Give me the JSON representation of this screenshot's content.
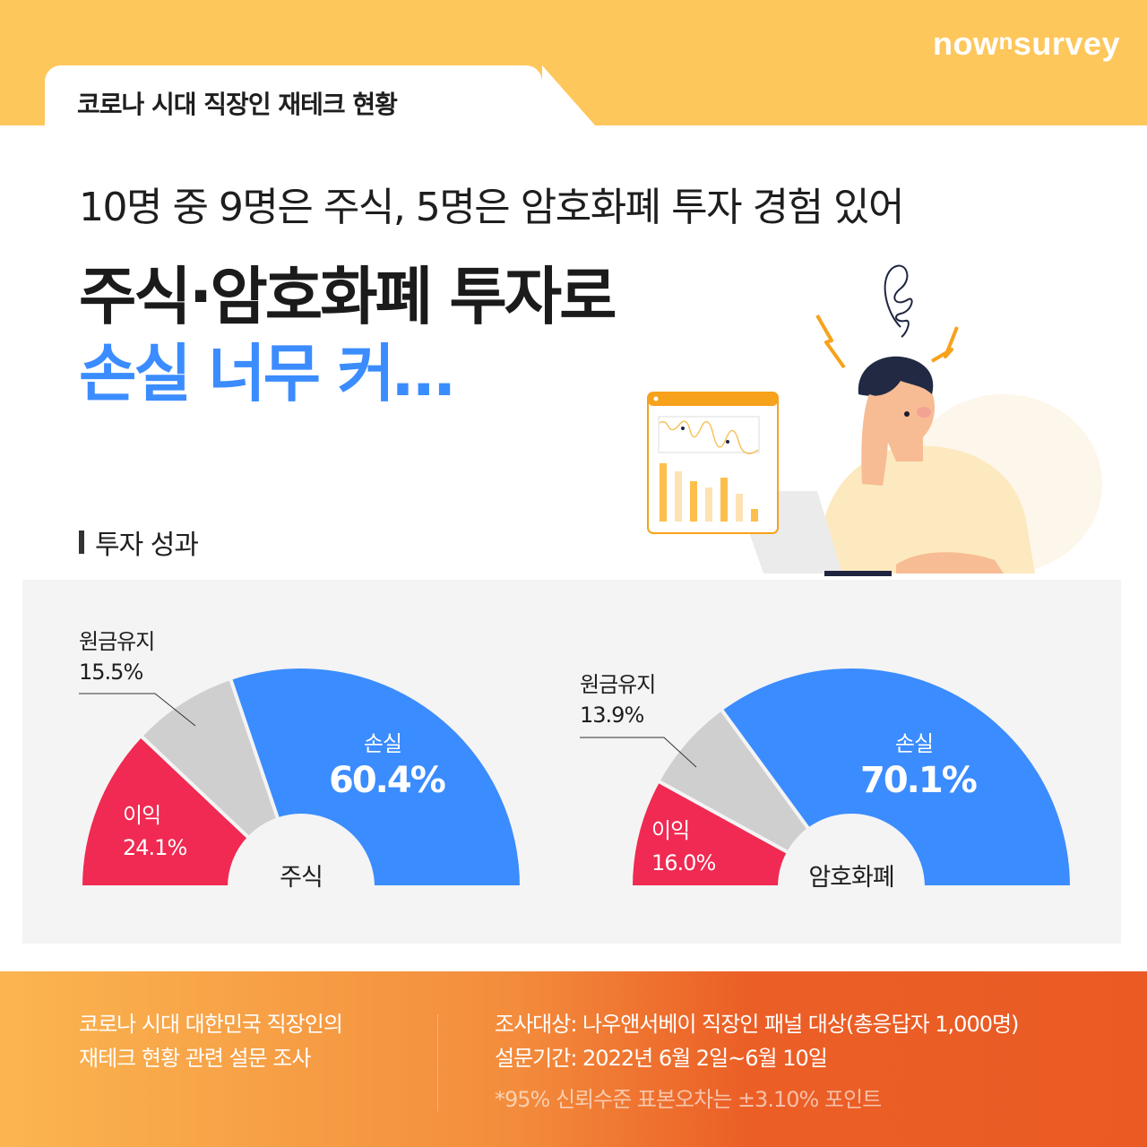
{
  "brand": {
    "prefix": "now",
    "superscript": "n",
    "suffix": "survey"
  },
  "header": {
    "tab_title": "코로나 시대 직장인 재테크 현황"
  },
  "headline": {
    "subhead": "10명 중 9명은 주식, 5명은 암호화폐 투자 경험 있어",
    "line1": "주식·암호화폐 투자로",
    "line2": "손실 너무 커…"
  },
  "colors": {
    "accent_blue": "#3b8cff",
    "profit_red": "#f02a52",
    "neutral_gray": "#cfcfcf",
    "top_band": "#fec75c"
  },
  "section": {
    "title": "투자 성과"
  },
  "chart_data": [
    {
      "type": "pie",
      "subtype": "half-donut",
      "title": "주식",
      "categories": [
        "이익",
        "원금유지",
        "손실"
      ],
      "values": [
        24.1,
        15.5,
        60.4
      ],
      "unit": "%",
      "colors": [
        "#f02a52",
        "#cfcfcf",
        "#3b8cff"
      ],
      "labels": {
        "profit": {
          "name": "이익",
          "value": "24.1%"
        },
        "hold": {
          "name": "원금유지",
          "value": "15.5%"
        },
        "loss": {
          "name": "손실",
          "value": "60.4%"
        }
      }
    },
    {
      "type": "pie",
      "subtype": "half-donut",
      "title": "암호화폐",
      "categories": [
        "이익",
        "원금유지",
        "손실"
      ],
      "values": [
        16.0,
        13.9,
        70.1
      ],
      "unit": "%",
      "colors": [
        "#f02a52",
        "#cfcfcf",
        "#3b8cff"
      ],
      "labels": {
        "profit": {
          "name": "이익",
          "value": "16.0%"
        },
        "hold": {
          "name": "원금유지",
          "value": "13.9%"
        },
        "loss": {
          "name": "손실",
          "value": "70.1%"
        }
      }
    }
  ],
  "footer": {
    "left_line1": "코로나 시대 대한민국 직장인의",
    "left_line2": "재테크 현황 관련 설문 조사",
    "target": "조사대상: 나우앤서베이 직장인 패널 대상(총응답자 1,000명)",
    "period": "설문기간: 2022년 6월 2일~6월 10일",
    "note": "*95% 신뢰수준 표본오차는 ±3.10% 포인트"
  }
}
